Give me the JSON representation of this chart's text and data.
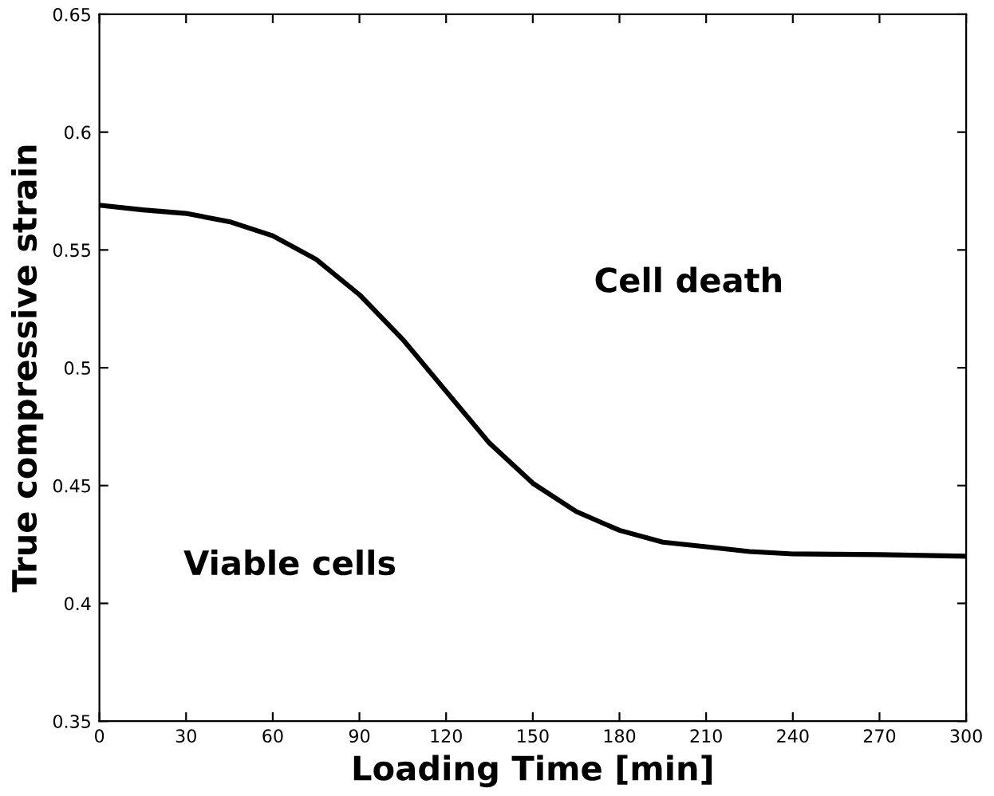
{
  "chart_data": {
    "type": "line",
    "xlabel": "Loading Time [min]",
    "ylabel": "True compressive strain",
    "x": [
      0,
      15,
      30,
      45,
      60,
      75,
      90,
      105,
      120,
      135,
      150,
      165,
      180,
      195,
      210,
      225,
      240,
      270,
      300
    ],
    "series": [
      {
        "color": "#000000",
        "values": [
          0.569,
          0.567,
          0.5655,
          0.562,
          0.556,
          0.546,
          0.531,
          0.512,
          0.49,
          0.468,
          0.451,
          0.439,
          0.431,
          0.426,
          0.424,
          0.422,
          0.421,
          0.4207,
          0.42
        ]
      }
    ],
    "xlim": [
      0,
      300
    ],
    "ylim": [
      0.35,
      0.65
    ],
    "xticks": [
      0,
      30,
      60,
      90,
      120,
      150,
      180,
      210,
      240,
      270,
      300
    ],
    "yticks": [
      0.35,
      0.4,
      0.45,
      0.5,
      0.55,
      0.6,
      0.65
    ],
    "annotations": [
      "Cell death",
      "Viable cells"
    ],
    "grid": false,
    "legend": false,
    "marker": "none",
    "line_style": "solid"
  }
}
